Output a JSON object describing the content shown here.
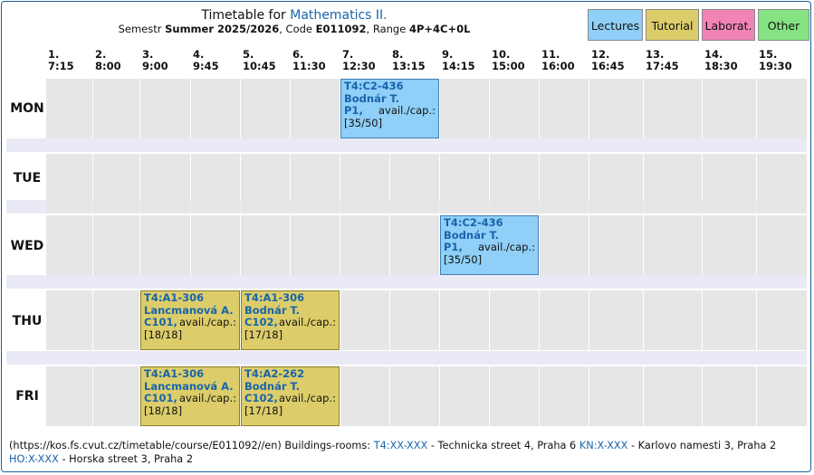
{
  "header": {
    "title_prefix": "Timetable for",
    "course_name": "Mathematics II.",
    "semester_label": "Semestr",
    "semester": "Summer 2025/2026",
    "code_label": ", Code",
    "code": "E011092",
    "range_label": ", Range",
    "range": "4P+4C+0L"
  },
  "legend": {
    "lectures": "Lectures",
    "tutorial": "Tutorial",
    "laboratory": "Laborat.",
    "other": "Other",
    "colors": {
      "lectures": "#8fcff8",
      "tutorial": "#dccd6a",
      "laboratory": "#f184b4",
      "other": "#86e384"
    }
  },
  "slots": [
    {
      "num": "1.",
      "time": "7:15"
    },
    {
      "num": "2.",
      "time": "8:00"
    },
    {
      "num": "3.",
      "time": "9:00"
    },
    {
      "num": "4.",
      "time": "9:45"
    },
    {
      "num": "5.",
      "time": "10:45"
    },
    {
      "num": "6.",
      "time": "11:30"
    },
    {
      "num": "7.",
      "time": "12:30"
    },
    {
      "num": "8.",
      "time": "13:15"
    },
    {
      "num": "9.",
      "time": "14:15"
    },
    {
      "num": "10.",
      "time": "15:00"
    },
    {
      "num": "11.",
      "time": "16:00"
    },
    {
      "num": "12.",
      "time": "16:45"
    },
    {
      "num": "13.",
      "time": "17:45"
    },
    {
      "num": "14.",
      "time": "18:30"
    },
    {
      "num": "15.",
      "time": "19:30"
    }
  ],
  "days": [
    "MON",
    "TUE",
    "WED",
    "THU",
    "FRI"
  ],
  "events": [
    {
      "day": "MON",
      "start_slot": 7,
      "span": 2,
      "type": "lecture",
      "room": "T4:C2-436",
      "teacher": "Bodnár T.",
      "group": "P1",
      "avail_label": "avail./cap.:",
      "capacity": "[35/50]"
    },
    {
      "day": "WED",
      "start_slot": 9,
      "span": 2,
      "type": "lecture",
      "room": "T4:C2-436",
      "teacher": "Bodnár T.",
      "group": "P1",
      "avail_label": "avail./cap.:",
      "capacity": "[35/50]"
    },
    {
      "day": "THU",
      "start_slot": 3,
      "span": 2,
      "type": "tutorial",
      "room": "T4:A1-306",
      "teacher": "Lancmanová A.",
      "group": "C101",
      "avail_label": "avail./cap.:",
      "capacity": "[18/18]"
    },
    {
      "day": "THU",
      "start_slot": 5,
      "span": 2,
      "type": "tutorial",
      "room": "T4:A1-306",
      "teacher": "Bodnár T.",
      "group": "C102",
      "avail_label": "avail./cap.:",
      "capacity": "[17/18]"
    },
    {
      "day": "FRI",
      "start_slot": 3,
      "span": 2,
      "type": "tutorial",
      "room": "T4:A1-306",
      "teacher": "Lancmanová A.",
      "group": "C101",
      "avail_label": "avail./cap.:",
      "capacity": "[18/18]"
    },
    {
      "day": "FRI",
      "start_slot": 5,
      "span": 2,
      "type": "tutorial",
      "room": "T4:A2-262",
      "teacher": "Bodnár T.",
      "group": "C102",
      "avail_label": "avail./cap.:",
      "capacity": "[17/18]"
    }
  ],
  "footer": {
    "url": "(https://kos.fs.cvut.cz/timetable/course/E011092//en)",
    "buildings_label": "Buildings-rooms:",
    "buildings": [
      {
        "code": "T4:XX-XXX",
        "desc": "- Technicka street 4, Praha 6"
      },
      {
        "code": "KN:X-XXX",
        "desc": "- Karlovo namesti 3, Praha 2"
      },
      {
        "code": "HO:X-XXX",
        "desc": "- Horska street 3, Praha 2"
      }
    ]
  }
}
